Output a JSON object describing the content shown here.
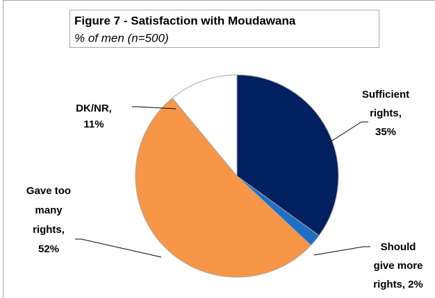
{
  "chart_data": {
    "type": "pie",
    "title": "Figure 7 - Satisfaction with Moudawana",
    "subtitle": "% of men (n=500)",
    "categories": [
      "Sufficient rights,",
      "Should give more rights,",
      "Gave too many rights,",
      "DK/NR,"
    ],
    "values": [
      35,
      2,
      52,
      11
    ],
    "value_labels": [
      "35%",
      "2%",
      "52%",
      "11%"
    ],
    "colors": [
      "#002060",
      "#1f6fc5",
      "#f79646",
      "#ffffff"
    ]
  }
}
